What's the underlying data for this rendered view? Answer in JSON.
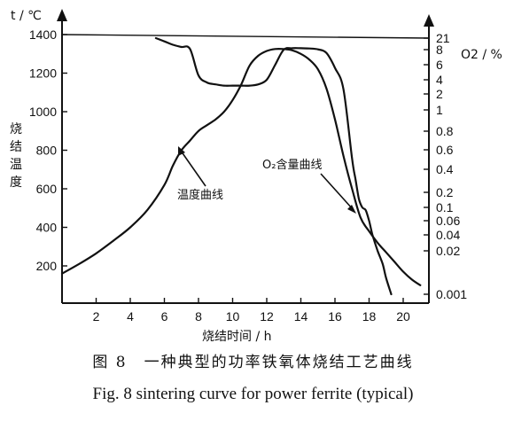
{
  "chart_data": {
    "type": "line",
    "title": "",
    "left_axis": {
      "unit_label": "t / ℃",
      "title": "烧结温度",
      "ticks": [
        200,
        400,
        600,
        800,
        1000,
        1200,
        1400
      ],
      "range": [
        100,
        1400
      ]
    },
    "right_axis": {
      "unit_label": "O2 / %",
      "ticks": [
        "21",
        "8",
        "6",
        "4",
        "2",
        "1",
        "0.8",
        "0.6",
        "0.4",
        "0.2",
        "0.1",
        "0.06",
        "0.04",
        "0.02",
        "0.001"
      ],
      "scale": "nonuniform"
    },
    "x_axis": {
      "title": "烧结时间 / h",
      "ticks": [
        2,
        4,
        6,
        8,
        10,
        12,
        14,
        16,
        18,
        20
      ],
      "range": [
        0,
        21.5
      ]
    },
    "series": [
      {
        "name": "温度曲线",
        "axis": "left",
        "x": [
          0,
          1,
          2,
          3,
          4,
          5,
          6,
          6.5,
          7,
          7.5,
          8,
          8.5,
          9,
          9.5,
          10,
          10.5,
          11,
          11.5,
          12,
          12.5,
          13,
          13.5,
          14,
          14.5,
          15,
          15.5,
          16,
          16.5,
          17,
          17.5,
          18,
          18.5,
          19,
          19.5,
          20,
          20.5,
          21
        ],
        "y": [
          160,
          210,
          265,
          330,
          400,
          490,
          620,
          720,
          800,
          850,
          900,
          930,
          960,
          1000,
          1060,
          1140,
          1240,
          1290,
          1315,
          1325,
          1325,
          1318,
          1300,
          1270,
          1220,
          1120,
          960,
          770,
          600,
          450,
          380,
          320,
          270,
          220,
          170,
          130,
          100
        ]
      },
      {
        "name": "O2含量曲线",
        "axis": "right",
        "x": [
          5.5,
          6,
          6.5,
          7,
          7.5,
          8,
          8.5,
          9,
          9.5,
          10,
          10.5,
          11,
          11.5,
          12,
          12.5,
          13,
          13.5,
          14,
          14.5,
          15,
          15.5,
          16,
          16.5,
          17,
          17.2,
          17.4,
          17.6,
          17.8,
          18,
          18.2,
          18.5,
          18.8,
          19,
          19.3
        ],
        "y": [
          21,
          16,
          12,
          10,
          8.5,
          4.5,
          3.5,
          3.2,
          3.0,
          3.0,
          3.0,
          3.0,
          3.2,
          4.0,
          6.0,
          8.0,
          9.0,
          9.0,
          8.8,
          8.2,
          7.5,
          5.5,
          2.5,
          0.5,
          0.3,
          0.15,
          0.1,
          0.09,
          0.06,
          0.04,
          0.02,
          0.008,
          0.003,
          0.001
        ]
      }
    ],
    "annotations": {
      "temp_curve": "温度曲线",
      "o2_curve": "O₂含量曲线"
    },
    "grid": false
  },
  "caption": {
    "cn": "图 8　一种典型的功率铁氧体烧结工艺曲线",
    "en": "Fig. 8 sintering curve for power ferrite (typical)"
  }
}
